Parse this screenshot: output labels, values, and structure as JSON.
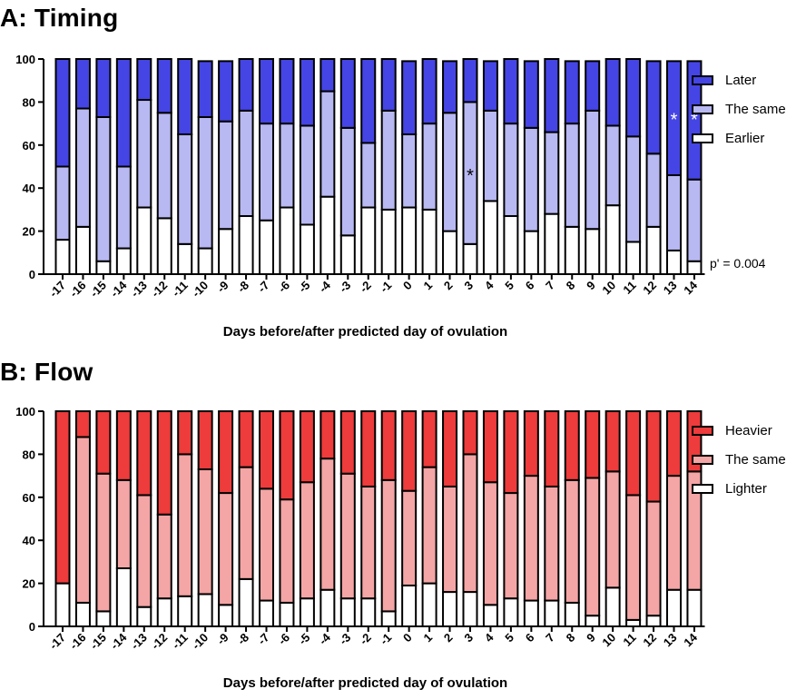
{
  "chart_data": [
    {
      "id": "timing",
      "type": "bar",
      "stacked": true,
      "title": "A: Timing",
      "xlabel": "Days before/after predicted day of ovulation",
      "ylabel": "",
      "ylim": [
        0,
        100
      ],
      "yticks": [
        0,
        20,
        40,
        60,
        80,
        100
      ],
      "grid": false,
      "legend_position": "right",
      "categories": [
        "-17",
        "-16",
        "-15",
        "-14",
        "-13",
        "-12",
        "-11",
        "-10",
        "-9",
        "-8",
        "-7",
        "-6",
        "-5",
        "-4",
        "-3",
        "-2",
        "-1",
        "0",
        "1",
        "2",
        "3",
        "4",
        "5",
        "6",
        "7",
        "8",
        "9",
        "10",
        "11",
        "12",
        "13",
        "14"
      ],
      "series": [
        {
          "name": "Earlier",
          "color": "#ffffff",
          "values": [
            16,
            22,
            6,
            12,
            31,
            26,
            14,
            12,
            21,
            27,
            25,
            31,
            23,
            36,
            18,
            31,
            30,
            31,
            30,
            20,
            14,
            34,
            27,
            20,
            28,
            22,
            21,
            32,
            15,
            22,
            11,
            6
          ]
        },
        {
          "name": "The same",
          "color": "#b8b8f2",
          "values": [
            34,
            55,
            67,
            38,
            50,
            49,
            51,
            61,
            50,
            49,
            45,
            39,
            46,
            49,
            50,
            30,
            46,
            34,
            40,
            55,
            66,
            42,
            43,
            48,
            38,
            48,
            55,
            37,
            49,
            34,
            35,
            38
          ]
        },
        {
          "name": "Later",
          "color": "#4545e5",
          "values": [
            50,
            23,
            27,
            50,
            19,
            25,
            35,
            26,
            28,
            24,
            30,
            30,
            31,
            15,
            32,
            39,
            24,
            34,
            30,
            24,
            20,
            23,
            30,
            31,
            34,
            29,
            23,
            31,
            36,
            43,
            53,
            55
          ]
        }
      ],
      "annotations": [
        {
          "category": "3",
          "text": "*",
          "color": "#000000",
          "y": 46
        },
        {
          "category": "13",
          "text": "*",
          "color": "#ffffff",
          "y": 72
        },
        {
          "category": "14",
          "text": "*",
          "color": "#ffffff",
          "y": 72
        }
      ],
      "stat_note": "p' = 0.004"
    },
    {
      "id": "flow",
      "type": "bar",
      "stacked": true,
      "title": "B: Flow",
      "xlabel": "Days before/after predicted day of ovulation",
      "ylabel": "",
      "ylim": [
        0,
        100
      ],
      "yticks": [
        0,
        20,
        40,
        60,
        80,
        100
      ],
      "grid": false,
      "legend_position": "right",
      "categories": [
        "-17",
        "-16",
        "-15",
        "-14",
        "-13",
        "-12",
        "-11",
        "-10",
        "-9",
        "-8",
        "-7",
        "-6",
        "-5",
        "-4",
        "-3",
        "-2",
        "-1",
        "0",
        "1",
        "2",
        "3",
        "4",
        "5",
        "6",
        "7",
        "8",
        "9",
        "10",
        "11",
        "12",
        "13",
        "14"
      ],
      "series": [
        {
          "name": "Lighter",
          "color": "#ffffff",
          "values": [
            20,
            11,
            7,
            27,
            9,
            13,
            14,
            15,
            10,
            22,
            12,
            11,
            13,
            17,
            13,
            13,
            7,
            19,
            20,
            16,
            16,
            10,
            13,
            12,
            12,
            11,
            5,
            18,
            3,
            5,
            17,
            17
          ]
        },
        {
          "name": "The same",
          "color": "#f4a5a5",
          "values": [
            0,
            77,
            64,
            41,
            52,
            39,
            66,
            58,
            52,
            52,
            52,
            48,
            54,
            61,
            58,
            52,
            61,
            44,
            54,
            49,
            64,
            57,
            49,
            58,
            53,
            57,
            64,
            54,
            58,
            53,
            53,
            55
          ]
        },
        {
          "name": "Heavier",
          "color": "#ee3b3b",
          "values": [
            80,
            12,
            29,
            32,
            39,
            48,
            20,
            27,
            38,
            26,
            36,
            41,
            33,
            22,
            29,
            35,
            32,
            37,
            26,
            35,
            20,
            33,
            38,
            30,
            35,
            32,
            31,
            28,
            39,
            42,
            30,
            28
          ]
        }
      ],
      "annotations": []
    }
  ]
}
